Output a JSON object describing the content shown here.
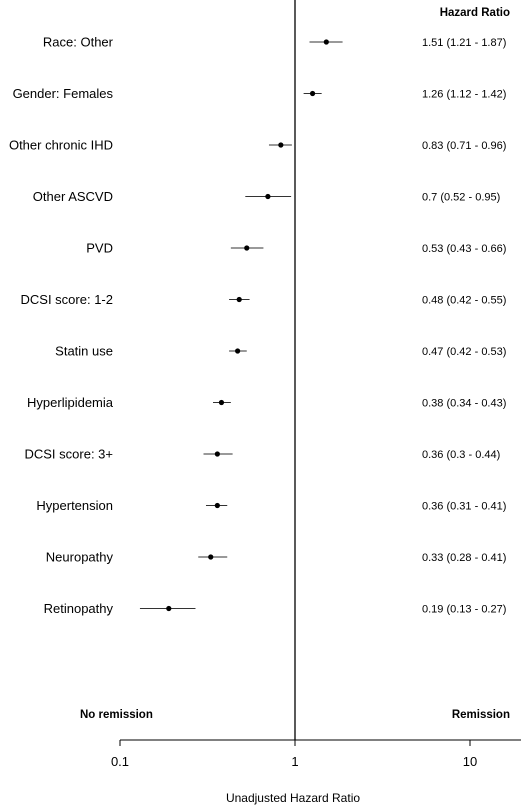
{
  "chart_data": {
    "type": "forest",
    "header": "Hazard Ratio",
    "xlabel": "Unadjusted Hazard Ratio",
    "left_annotation": "No remission",
    "right_annotation": "Remission",
    "x_scale": "log",
    "xlim": [
      0.1,
      20
    ],
    "reference_line": 1,
    "ticks": [
      {
        "value": 0.1,
        "label": "0.1"
      },
      {
        "value": 1,
        "label": "1"
      },
      {
        "value": 10,
        "label": "10"
      }
    ],
    "rows": [
      {
        "label": "Race: Other",
        "hr": 1.51,
        "lo": 1.21,
        "hi": 1.87,
        "text": "1.51 (1.21 - 1.87)"
      },
      {
        "label": "Gender: Females",
        "hr": 1.26,
        "lo": 1.12,
        "hi": 1.42,
        "text": "1.26 (1.12 - 1.42)"
      },
      {
        "label": "Other chronic IHD",
        "hr": 0.83,
        "lo": 0.71,
        "hi": 0.96,
        "text": "0.83 (0.71 - 0.96)"
      },
      {
        "label": "Other ASCVD",
        "hr": 0.7,
        "lo": 0.52,
        "hi": 0.95,
        "text": "0.7 (0.52 - 0.95)"
      },
      {
        "label": "PVD",
        "hr": 0.53,
        "lo": 0.43,
        "hi": 0.66,
        "text": "0.53 (0.43 - 0.66)"
      },
      {
        "label": "DCSI score: 1-2",
        "hr": 0.48,
        "lo": 0.42,
        "hi": 0.55,
        "text": "0.48 (0.42 - 0.55)"
      },
      {
        "label": "Statin use",
        "hr": 0.47,
        "lo": 0.42,
        "hi": 0.53,
        "text": "0.47 (0.42 - 0.53)"
      },
      {
        "label": "Hyperlipidemia",
        "hr": 0.38,
        "lo": 0.34,
        "hi": 0.43,
        "text": "0.38 (0.34 - 0.43)"
      },
      {
        "label": "DCSI score: 3+",
        "hr": 0.36,
        "lo": 0.3,
        "hi": 0.44,
        "text": "0.36 (0.3 - 0.44)"
      },
      {
        "label": "Hypertension",
        "hr": 0.36,
        "lo": 0.31,
        "hi": 0.41,
        "text": "0.36 (0.31 - 0.41)"
      },
      {
        "label": "Neuropathy",
        "hr": 0.33,
        "lo": 0.28,
        "hi": 0.41,
        "text": "0.33 (0.28 - 0.41)"
      },
      {
        "label": "Retinopathy",
        "hr": 0.19,
        "lo": 0.13,
        "hi": 0.27,
        "text": "0.19 (0.13 - 0.27)"
      }
    ]
  }
}
